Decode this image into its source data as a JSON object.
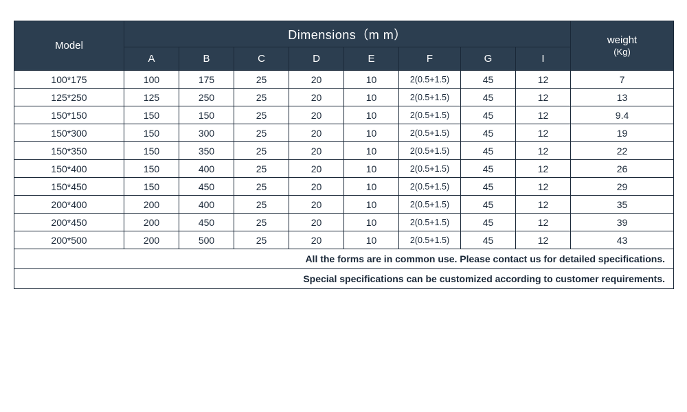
{
  "table": {
    "header_bg": "#2c3e50",
    "header_fg": "#ffffff",
    "border_color": "#1a2838",
    "cell_fg": "#1a2838",
    "background": "#ffffff",
    "model_label": "Model",
    "dimensions_label": "Dimensions（m m）",
    "weight_label": "weight",
    "weight_unit": "(Kg)",
    "dim_columns": [
      "A",
      "B",
      "C",
      "D",
      "E",
      "F",
      "G",
      "I"
    ],
    "rows": [
      {
        "model": "100*175",
        "A": "100",
        "B": "175",
        "C": "25",
        "D": "20",
        "E": "10",
        "F": "2(0.5+1.5)",
        "G": "45",
        "I": "12",
        "weight": "7"
      },
      {
        "model": "125*250",
        "A": "125",
        "B": "250",
        "C": "25",
        "D": "20",
        "E": "10",
        "F": "2(0.5+1.5)",
        "G": "45",
        "I": "12",
        "weight": "13"
      },
      {
        "model": "150*150",
        "A": "150",
        "B": "150",
        "C": "25",
        "D": "20",
        "E": "10",
        "F": "2(0.5+1.5)",
        "G": "45",
        "I": "12",
        "weight": "9.4"
      },
      {
        "model": "150*300",
        "A": "150",
        "B": "300",
        "C": "25",
        "D": "20",
        "E": "10",
        "F": "2(0.5+1.5)",
        "G": "45",
        "I": "12",
        "weight": "19"
      },
      {
        "model": "150*350",
        "A": "150",
        "B": "350",
        "C": "25",
        "D": "20",
        "E": "10",
        "F": "2(0.5+1.5)",
        "G": "45",
        "I": "12",
        "weight": "22"
      },
      {
        "model": "150*400",
        "A": "150",
        "B": "400",
        "C": "25",
        "D": "20",
        "E": "10",
        "F": "2(0.5+1.5)",
        "G": "45",
        "I": "12",
        "weight": "26"
      },
      {
        "model": "150*450",
        "A": "150",
        "B": "450",
        "C": "25",
        "D": "20",
        "E": "10",
        "F": "2(0.5+1.5)",
        "G": "45",
        "I": "12",
        "weight": "29"
      },
      {
        "model": "200*400",
        "A": "200",
        "B": "400",
        "C": "25",
        "D": "20",
        "E": "10",
        "F": "2(0.5+1.5)",
        "G": "45",
        "I": "12",
        "weight": "35"
      },
      {
        "model": "200*450",
        "A": "200",
        "B": "450",
        "C": "25",
        "D": "20",
        "E": "10",
        "F": "2(0.5+1.5)",
        "G": "45",
        "I": "12",
        "weight": "39"
      },
      {
        "model": "200*500",
        "A": "200",
        "B": "500",
        "C": "25",
        "D": "20",
        "E": "10",
        "F": "2(0.5+1.5)",
        "G": "45",
        "I": "12",
        "weight": "43"
      }
    ],
    "footer1": "All the forms are in common use. Please contact us for detailed specifications.",
    "footer2": "Special specifications can be customized according to customer requirements."
  }
}
